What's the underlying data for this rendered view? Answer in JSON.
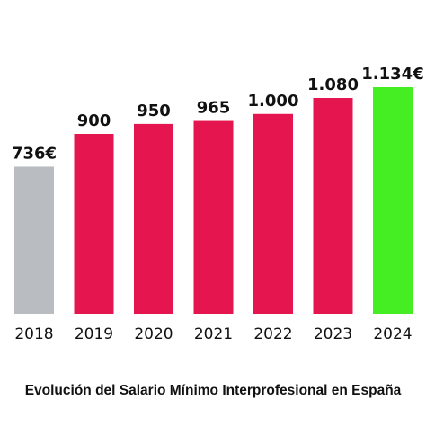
{
  "chart_data": {
    "type": "bar",
    "title": "Evolución del Salario Mínimo Interprofesional en España",
    "categories": [
      "2018",
      "2019",
      "2020",
      "2021",
      "2022",
      "2023",
      "2024"
    ],
    "values": [
      736,
      900,
      950,
      965,
      1000,
      1080,
      1134
    ],
    "value_labels": [
      "736€",
      "900",
      "950",
      "965",
      "1.000",
      "1.080",
      "1.134€"
    ],
    "colors": [
      "#b9bcc1",
      "#e5154f",
      "#e5154f",
      "#e5154f",
      "#e5154f",
      "#e5154f",
      "#44ee22"
    ],
    "ylim": [
      0,
      1200
    ],
    "grid": false,
    "legend": "none"
  }
}
